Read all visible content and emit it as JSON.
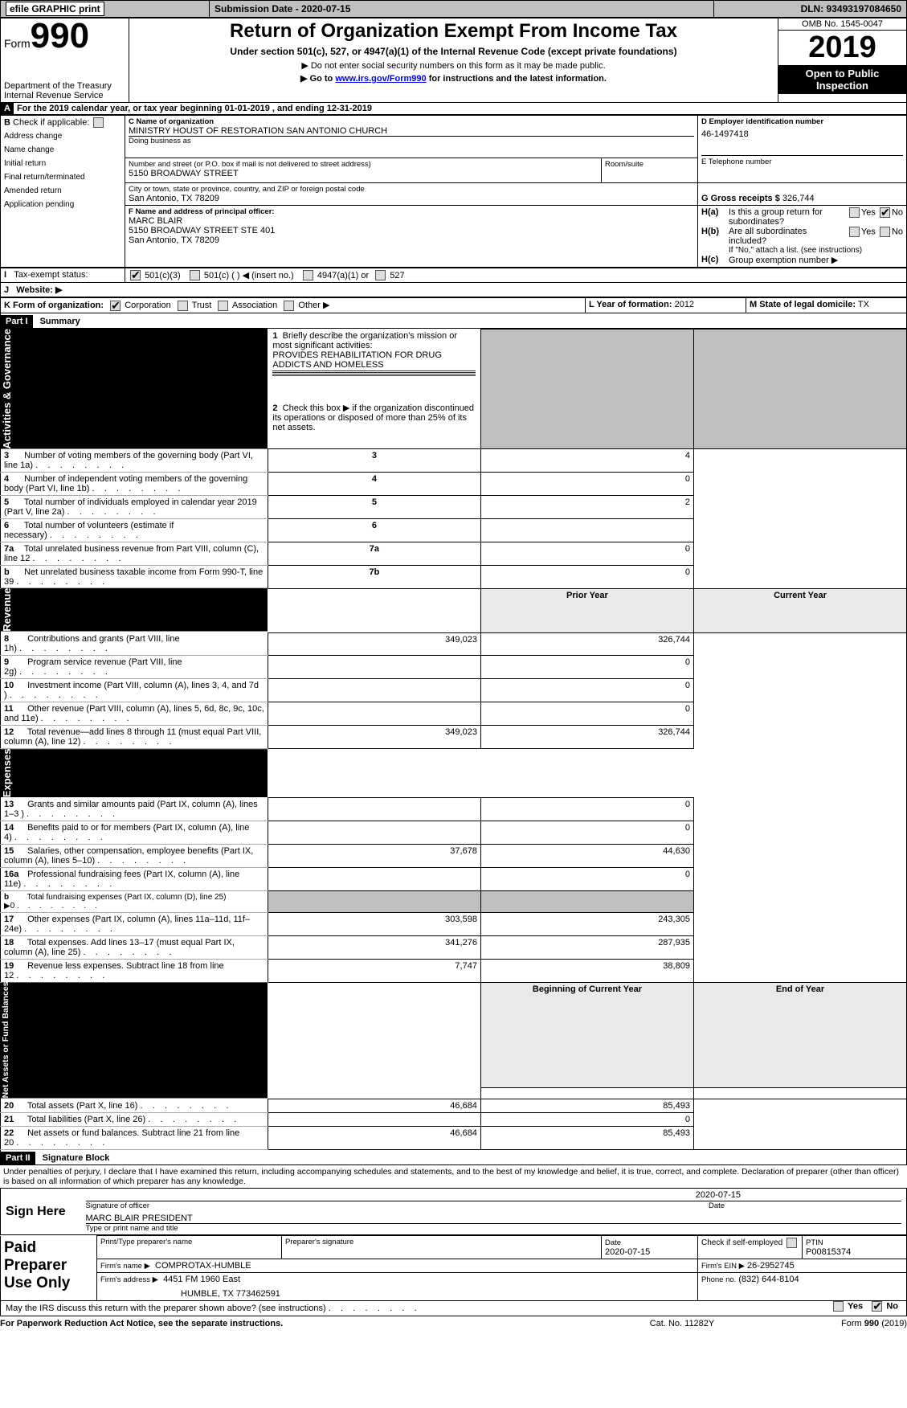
{
  "topbar": {
    "efile": "efile GRAPHIC print",
    "submission_label": "Submission Date - 2020-07-15",
    "dln_label": "DLN: 93493197084650"
  },
  "header": {
    "form_label": "Form",
    "form_num": "990",
    "title": "Return of Organization Exempt From Income Tax",
    "subtitle": "Under section 501(c), 527, or 4947(a)(1) of the Internal Revenue Code (except private foundations)",
    "warn1": "▶ Do not enter social security numbers on this form as it may be made public.",
    "warn2_pre": "▶ Go to ",
    "warn2_link": "www.irs.gov/Form990",
    "warn2_post": " for instructions and the latest information.",
    "dept1": "Department of the Treasury",
    "dept2": "Internal Revenue Service",
    "omb": "OMB No. 1545-0047",
    "year": "2019",
    "open": "Open to Public Inspection"
  },
  "A": {
    "text_pre": "For the 2019 calendar year, or tax year beginning ",
    "begin": "01-01-2019",
    "mid": " , and ending ",
    "end": "12-31-2019"
  },
  "B": {
    "label": "Check if applicable:",
    "opts": [
      "Address change",
      "Name change",
      "Initial return",
      "Final return/terminated",
      "Amended return",
      "Application pending"
    ]
  },
  "C": {
    "label": "C Name of organization",
    "name": "MINISTRY HOUST OF RESTORATION SAN ANTONIO CHURCH",
    "dba_label": "Doing business as",
    "addr_label": "Number and street (or P.O. box if mail is not delivered to street address)",
    "addr": "5150 BROADWAY STREET",
    "room_label": "Room/suite",
    "city_label": "City or town, state or province, country, and ZIP or foreign postal code",
    "city": "San Antonio, TX  78209"
  },
  "D": {
    "label": "D Employer identification number",
    "ein": "46-1497418"
  },
  "E": {
    "label": "E Telephone number"
  },
  "G": {
    "label": "G Gross receipts $",
    "val": "326,744"
  },
  "F": {
    "label": "F  Name and address of principal officer:",
    "name": "MARC BLAIR",
    "addr1": "5150 BROADWAY STREET STE 401",
    "addr2": "San Antonio, TX  78209"
  },
  "H": {
    "a_label": "Is this a group return for subordinates?",
    "b_label": "Are all subordinates included?",
    "b_note": "If \"No,\" attach a list. (see instructions)",
    "c_label": "Group exemption number ▶",
    "yes": "Yes",
    "no": "No"
  },
  "I": {
    "label": "Tax-exempt status:",
    "o1": "501(c)(3)",
    "o2": "501(c) (   ) ◀ (insert no.)",
    "o3": "4947(a)(1) or",
    "o4": "527"
  },
  "J": {
    "label": "Website: ▶"
  },
  "K": {
    "label": "K Form of organization:",
    "o1": "Corporation",
    "o2": "Trust",
    "o3": "Association",
    "o4": "Other ▶"
  },
  "L": {
    "label": "L Year of formation:",
    "val": "2012"
  },
  "M": {
    "label": "M State of legal domicile:",
    "val": "TX"
  },
  "part1": {
    "tag": "Part I",
    "title": "Summary",
    "l1_label": "Briefly describe the organization's mission or most significant activities:",
    "l1_text": "PROVIDES REHABILITATION FOR DRUG ADDICTS AND HOMELESS",
    "l2": "Check this box ▶  if the organization discontinued its operations or disposed of more than 25% of its net assets.",
    "rows_gov": [
      {
        "n": "3",
        "d": "Number of voting members of the governing body (Part VI, line 1a)",
        "box": "3",
        "v": "4"
      },
      {
        "n": "4",
        "d": "Number of independent voting members of the governing body (Part VI, line 1b)",
        "box": "4",
        "v": "0"
      },
      {
        "n": "5",
        "d": "Total number of individuals employed in calendar year 2019 (Part V, line 2a)",
        "box": "5",
        "v": "2"
      },
      {
        "n": "6",
        "d": "Total number of volunteers (estimate if necessary)",
        "box": "6",
        "v": ""
      },
      {
        "n": "7a",
        "d": "Total unrelated business revenue from Part VIII, column (C), line 12",
        "box": "7a",
        "v": "0"
      },
      {
        "n": "b",
        "d": "Net unrelated business taxable income from Form 990-T, line 39",
        "box": "7b",
        "v": "0"
      }
    ],
    "col_prior": "Prior Year",
    "col_curr": "Current Year",
    "rev": [
      {
        "n": "8",
        "d": "Contributions and grants (Part VIII, line 1h)",
        "p": "349,023",
        "c": "326,744"
      },
      {
        "n": "9",
        "d": "Program service revenue (Part VIII, line 2g)",
        "p": "",
        "c": "0"
      },
      {
        "n": "10",
        "d": "Investment income (Part VIII, column (A), lines 3, 4, and 7d )",
        "p": "",
        "c": "0"
      },
      {
        "n": "11",
        "d": "Other revenue (Part VIII, column (A), lines 5, 6d, 8c, 9c, 10c, and 11e)",
        "p": "",
        "c": "0"
      },
      {
        "n": "12",
        "d": "Total revenue—add lines 8 through 11 (must equal Part VIII, column (A), line 12)",
        "p": "349,023",
        "c": "326,744"
      }
    ],
    "exp": [
      {
        "n": "13",
        "d": "Grants and similar amounts paid (Part IX, column (A), lines 1–3 )",
        "p": "",
        "c": "0"
      },
      {
        "n": "14",
        "d": "Benefits paid to or for members (Part IX, column (A), line 4)",
        "p": "",
        "c": "0"
      },
      {
        "n": "15",
        "d": "Salaries, other compensation, employee benefits (Part IX, column (A), lines 5–10)",
        "p": "37,678",
        "c": "44,630"
      },
      {
        "n": "16a",
        "d": "Professional fundraising fees (Part IX, column (A), line 11e)",
        "p": "",
        "c": "0"
      },
      {
        "n": "b",
        "d": "Total fundraising expenses (Part IX, column (D), line 25) ▶0",
        "p": "SHADE",
        "c": "SHADE"
      },
      {
        "n": "17",
        "d": "Other expenses (Part IX, column (A), lines 11a–11d, 11f–24e)",
        "p": "303,598",
        "c": "243,305"
      },
      {
        "n": "18",
        "d": "Total expenses. Add lines 13–17 (must equal Part IX, column (A), line 25)",
        "p": "341,276",
        "c": "287,935"
      },
      {
        "n": "19",
        "d": "Revenue less expenses. Subtract line 18 from line 12",
        "p": "7,747",
        "c": "38,809"
      }
    ],
    "col_boy": "Beginning of Current Year",
    "col_eoy": "End of Year",
    "net": [
      {
        "n": "20",
        "d": "Total assets (Part X, line 16)",
        "p": "46,684",
        "c": "85,493"
      },
      {
        "n": "21",
        "d": "Total liabilities (Part X, line 26)",
        "p": "",
        "c": "0"
      },
      {
        "n": "22",
        "d": "Net assets or fund balances. Subtract line 21 from line 20",
        "p": "46,684",
        "c": "85,493"
      }
    ],
    "tab_gov": "Activities & Governance",
    "tab_rev": "Revenue",
    "tab_exp": "Expenses",
    "tab_net": "Net Assets or Fund Balances"
  },
  "part2": {
    "tag": "Part II",
    "title": "Signature Block",
    "perjury": "Under penalties of perjury, I declare that I have examined this return, including accompanying schedules and statements, and to the best of my knowledge and belief, it is true, correct, and complete. Declaration of preparer (other than officer) is based on all information of which preparer has any knowledge.",
    "sign_here": "Sign Here",
    "sig_officer": "Signature of officer",
    "sig_date": "2020-07-15",
    "date_lbl": "Date",
    "officer_name": "MARC BLAIR PRESIDENT",
    "officer_lbl": "Type or print name and title",
    "paid": "Paid Preparer Use Only",
    "pt_name_lbl": "Print/Type preparer's name",
    "pt_sig_lbl": "Preparer's signature",
    "pt_date_lbl": "Date",
    "pt_date": "2020-07-15",
    "pt_check_lbl": "Check          if self-employed",
    "ptin_lbl": "PTIN",
    "ptin": "P00815374",
    "firm_name_lbl": "Firm's name    ▶",
    "firm_name": "COMPROTAX-HUMBLE",
    "firm_ein_lbl": "Firm's EIN ▶",
    "firm_ein": "26-2952745",
    "firm_addr_lbl": "Firm's address ▶",
    "firm_addr1": "4451 FM 1960 East",
    "firm_addr2": "HUMBLE, TX  773462591",
    "phone_lbl": "Phone no.",
    "phone": "(832) 644-8104",
    "discuss": "May the IRS discuss this return with the preparer shown above? (see instructions)",
    "yes": "Yes",
    "no": "No"
  },
  "footer": {
    "pra": "For Paperwork Reduction Act Notice, see the separate instructions.",
    "cat": "Cat. No. 11282Y",
    "form": "Form 990 (2019)"
  }
}
